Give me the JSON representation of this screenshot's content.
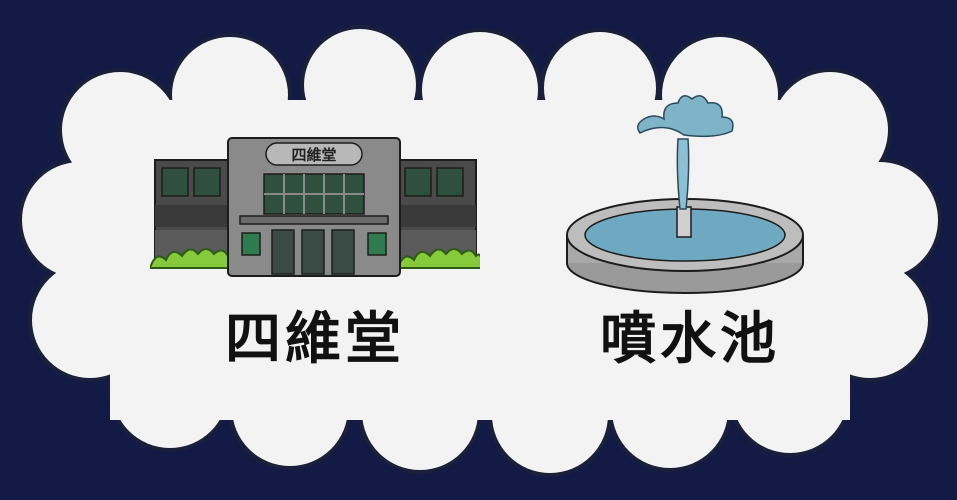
{
  "colors": {
    "background": "#121a45",
    "cloud": "#f3f3f3",
    "cloud_outline": "#1a1f3a",
    "label_text": "#111111",
    "building_main": "#8a8a8a",
    "building_wing": "#4a4a4a",
    "bush": "#86c93a",
    "water": "#6fa9c1",
    "basin": "#a9a9a9"
  },
  "illustrations": [
    {
      "id": "building",
      "icon": "building-icon",
      "sign_text": "四維堂",
      "caption": "四維堂"
    },
    {
      "id": "fountain",
      "icon": "fountain-icon",
      "caption": "噴水池"
    }
  ]
}
